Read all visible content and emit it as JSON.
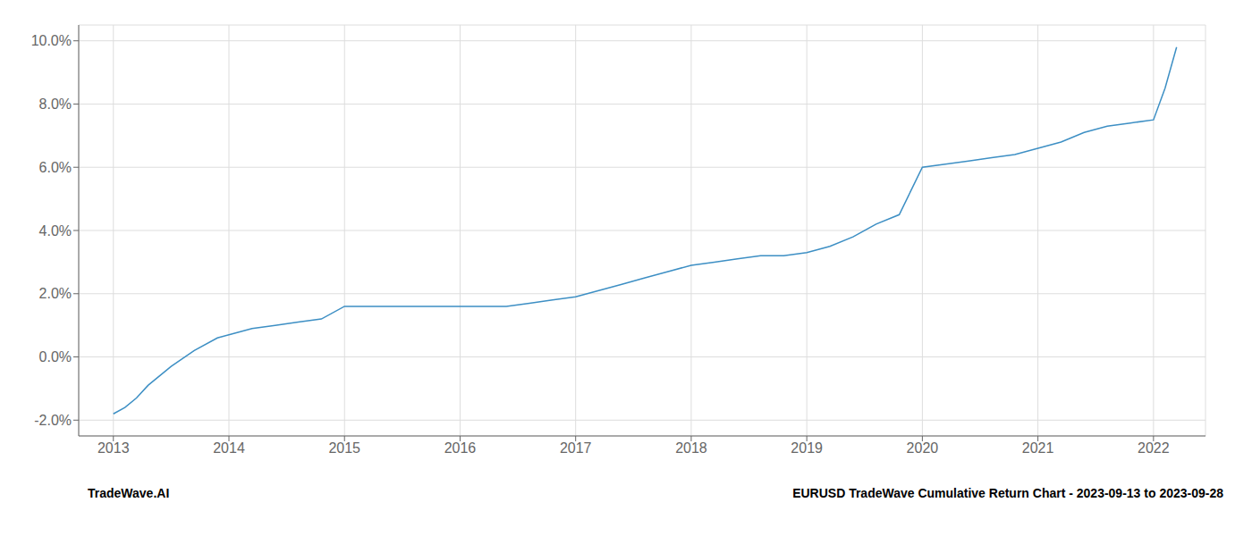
{
  "chart_data": {
    "type": "line",
    "annotations": [
      "TradeWave.AI",
      "EURUSD TradeWave Cumulative Return Chart - 2023-09-13 to 2023-09-28"
    ],
    "x": [
      2013.0,
      2013.1,
      2013.2,
      2013.3,
      2013.5,
      2013.7,
      2013.9,
      2014.0,
      2014.2,
      2014.4,
      2014.6,
      2014.8,
      2015.0,
      2015.2,
      2015.4,
      2015.6,
      2015.8,
      2016.0,
      2016.2,
      2016.4,
      2016.6,
      2016.8,
      2017.0,
      2017.2,
      2017.4,
      2017.6,
      2017.8,
      2018.0,
      2018.2,
      2018.4,
      2018.6,
      2018.8,
      2019.0,
      2019.2,
      2019.4,
      2019.6,
      2019.8,
      2020.0,
      2020.2,
      2020.4,
      2020.6,
      2020.8,
      2021.0,
      2021.2,
      2021.4,
      2021.6,
      2021.8,
      2022.0,
      2022.1,
      2022.2
    ],
    "values": [
      -0.018,
      -0.016,
      -0.013,
      -0.009,
      -0.003,
      0.002,
      0.006,
      0.007,
      0.009,
      0.01,
      0.011,
      0.012,
      0.016,
      0.016,
      0.016,
      0.016,
      0.016,
      0.016,
      0.016,
      0.016,
      0.017,
      0.018,
      0.019,
      0.021,
      0.023,
      0.025,
      0.027,
      0.029,
      0.03,
      0.031,
      0.032,
      0.032,
      0.033,
      0.035,
      0.038,
      0.042,
      0.045,
      0.06,
      0.061,
      0.062,
      0.063,
      0.064,
      0.066,
      0.068,
      0.071,
      0.073,
      0.074,
      0.075,
      0.085,
      0.098
    ],
    "color": "#3d8fc4",
    "xlim": [
      2012.7,
      2022.45
    ],
    "xticks": [
      2013,
      2014,
      2015,
      2016,
      2017,
      2018,
      2019,
      2020,
      2021,
      2022
    ],
    "ylim": [
      -0.025,
      0.105
    ],
    "yticks": [
      {
        "value": -0.02,
        "label": "-2.0%"
      },
      {
        "value": 0.0,
        "label": "0.0%"
      },
      {
        "value": 0.02,
        "label": "2.0%"
      },
      {
        "value": 0.04,
        "label": "4.0%"
      },
      {
        "value": 0.06,
        "label": "6.0%"
      },
      {
        "value": 0.08,
        "label": "8.0%"
      },
      {
        "value": 0.1,
        "label": "10.0%"
      }
    ],
    "grid": true
  }
}
